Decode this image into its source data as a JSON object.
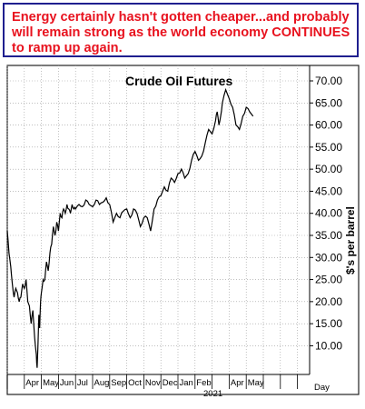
{
  "caption": {
    "text": "Energy certainly hasn't gotten cheaper...and probably will remain strong as the world economy CONTINUES to ramp up again.",
    "color": "#e8121e",
    "border_color": "#1f1f8f"
  },
  "chart_data": {
    "type": "line",
    "title": "Crude Oil Futures",
    "ylabel": "$'s per barrel",
    "xlabel": "",
    "ylim": [
      3.5,
      73.5
    ],
    "yticks": [
      10,
      15,
      20,
      25,
      30,
      35,
      40,
      45,
      50,
      55,
      60,
      65,
      70
    ],
    "ytick_labels": [
      "10.00",
      "15.00",
      "20.00",
      "25.00",
      "30.00",
      "35.00",
      "40.00",
      "45.00",
      "50.00",
      "55.00",
      "60.00",
      "65.00",
      "70.00"
    ],
    "x_months": [
      "Apr",
      "May",
      "Jun",
      "Jul",
      "Aug",
      "Sep",
      "Oct",
      "Nov",
      "Dec",
      "Jan",
      "Feb",
      "Apr",
      "May"
    ],
    "x_month_index": [
      2,
      3,
      4,
      5,
      6,
      7,
      8,
      9,
      10,
      11,
      12,
      14,
      15
    ],
    "x_year_label": "2021",
    "x_extra_label": "Day",
    "grid": true,
    "series": [
      {
        "x": [
          0,
          0.1,
          0.2,
          0.3,
          0.4,
          0.5,
          0.6,
          0.7,
          0.8,
          0.9,
          1.0,
          1.1,
          1.2,
          1.3,
          1.4,
          1.5,
          1.6,
          1.7,
          1.75,
          1.8,
          1.85,
          1.9,
          1.95,
          2.0,
          2.1,
          2.2,
          2.3,
          2.4,
          2.5,
          2.6,
          2.7,
          2.8,
          2.9,
          3.0,
          3.1,
          3.2,
          3.3,
          3.4,
          3.5,
          3.6,
          3.7,
          3.8,
          3.9,
          4.0,
          4.2,
          4.4,
          4.6,
          4.8,
          5.0,
          5.2,
          5.4,
          5.6,
          5.8,
          6.0,
          6.2,
          6.4,
          6.6,
          6.8,
          7.0,
          7.2,
          7.4,
          7.6,
          7.8,
          8.0,
          8.2,
          8.4,
          8.6,
          8.8,
          9.0,
          9.2,
          9.4,
          9.6,
          9.8,
          10.0,
          10.2,
          10.4,
          10.6,
          10.8,
          11.0,
          11.2,
          11.4,
          11.6,
          11.8,
          12.0,
          12.2,
          12.3,
          12.4,
          12.5,
          12.6,
          12.8,
          13.0,
          13.2,
          13.4,
          13.6,
          13.8,
          14.0,
          14.2,
          14.4
        ],
        "y": [
          36,
          31,
          28,
          24,
          21,
          23,
          22,
          20,
          21,
          24,
          23,
          25,
          20,
          19,
          15,
          18,
          12,
          8,
          5,
          10,
          17,
          14,
          20,
          22,
          25,
          25,
          29,
          27,
          31,
          33,
          37,
          35,
          38,
          36,
          40,
          39,
          41,
          40,
          42,
          41,
          40,
          42,
          41,
          41,
          42,
          41.5,
          43,
          42,
          41.5,
          43,
          42,
          42.5,
          43.5,
          42,
          38,
          40,
          39,
          40.5,
          41,
          39,
          41,
          40,
          37,
          39,
          39,
          36,
          41,
          43,
          44,
          46,
          45,
          48,
          47,
          49,
          50,
          48,
          49,
          52,
          54,
          52,
          53,
          56,
          59,
          58,
          61,
          63,
          60,
          62,
          65,
          68,
          66,
          64,
          60,
          59,
          62,
          64,
          63,
          62
        ]
      }
    ]
  }
}
